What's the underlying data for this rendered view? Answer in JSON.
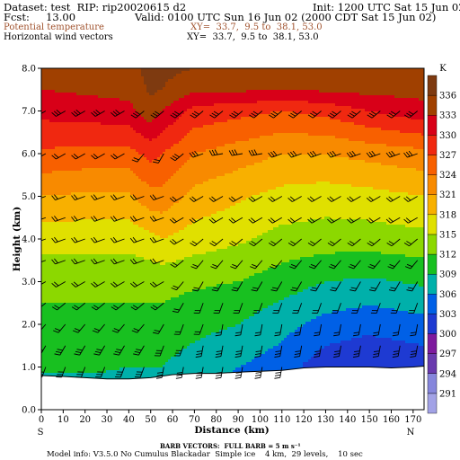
{
  "header": {
    "dataset_line": "Dataset: test  RIP: rip20020615 d2",
    "init_line": "Init: 1200 UTC Sat 15 Jun 02",
    "fcst_line": "Fcst:     13.00",
    "valid_line": "Valid: 0100 UTC Sun 16 Jun 02 (2000 CDT Sat 15 Jun 02)",
    "field1_label": "Potential temperature",
    "field1_xy": "XY=  33.7,  9.5 to  38.1, 53.0",
    "field2_label": "Horizontal wind vectors",
    "field2_xy": "XY=  33.7,  9.5 to  38.1, 53.0"
  },
  "footer": {
    "barb_line": "BARB VECTORS:  FULL BARB = 5 m s⁻¹",
    "model_line": "Model info: V3.5.0 No Cumulus Blackadar  Simple ice    4 km,  29 levels,    10 sec"
  },
  "colors": {
    "background": "#ffffff",
    "terrain": "#ffffff"
  },
  "chart_data": {
    "type": "heatmap",
    "title": "",
    "xlabel": "Distance  (km)",
    "ylabel": "Height (km)",
    "xlim": [
      0,
      175
    ],
    "ylim": [
      0,
      8
    ],
    "x_ticks": [
      0,
      10,
      20,
      30,
      40,
      50,
      60,
      70,
      80,
      90,
      100,
      110,
      120,
      130,
      140,
      150,
      160,
      170
    ],
    "y_ticks": [
      "0.0",
      "1.0",
      "2.0",
      "3.0",
      "4.0",
      "5.0",
      "6.0",
      "7.0",
      "8.0"
    ],
    "x_end_labels": {
      "left": "S",
      "right": "N"
    },
    "colorbar": {
      "unit": "K",
      "levels": [
        291,
        294,
        297,
        300,
        303,
        306,
        309,
        312,
        315,
        318,
        321,
        324,
        327,
        330,
        333,
        336
      ],
      "colors": [
        "#a2a2e6",
        "#8686dc",
        "#6a3aae",
        "#7e1a9e",
        "#1e3ad2",
        "#0060e6",
        "#00b0aa",
        "#18c020",
        "#8cd800",
        "#e0e000",
        "#f8b000",
        "#f88a00",
        "#f86000",
        "#f02810",
        "#d80018",
        "#a04000",
        "#7e3a10"
      ]
    },
    "terrain_height_km": {
      "x": [
        0,
        10,
        20,
        30,
        40,
        50,
        60,
        70,
        80,
        90,
        100,
        110,
        120,
        130,
        140,
        150,
        160,
        170,
        175
      ],
      "z": [
        0.8,
        0.78,
        0.75,
        0.72,
        0.72,
        0.75,
        0.82,
        0.85,
        0.85,
        0.88,
        0.9,
        0.92,
        0.98,
        1.0,
        1.0,
        1.0,
        0.98,
        1.0,
        1.02
      ]
    },
    "theta_profiles_K": {
      "z_km": [
        0.5,
        1,
        2,
        3,
        4,
        5,
        6,
        7,
        7.5,
        8
      ],
      "columns": [
        {
          "x": 0,
          "theta": [
            308,
            309.5,
            311,
            313,
            316,
            321,
            326.5,
            331,
            333,
            334
          ]
        },
        {
          "x": 20,
          "theta": [
            308,
            309.5,
            311,
            313,
            316,
            320.5,
            326,
            331.5,
            333.5,
            334
          ]
        },
        {
          "x": 40,
          "theta": [
            308,
            309,
            311,
            313,
            316,
            320.5,
            326,
            332,
            334,
            335
          ]
        },
        {
          "x": 50,
          "theta": [
            307,
            309,
            311,
            313,
            317,
            323,
            328,
            335,
            336.5,
            337
          ]
        },
        {
          "x": 55,
          "theta": [
            307,
            309,
            311,
            313,
            318,
            323,
            327,
            333,
            336,
            337
          ]
        },
        {
          "x": 70,
          "theta": [
            306,
            307.5,
            310,
            312.5,
            316.5,
            320,
            324,
            329,
            333.5,
            336
          ]
        },
        {
          "x": 90,
          "theta": [
            305,
            306,
            309,
            312,
            315.5,
            318.5,
            322.5,
            328,
            333.5,
            336
          ]
        },
        {
          "x": 110,
          "theta": [
            303,
            304.5,
            307,
            310.5,
            314,
            317,
            321,
            327,
            333,
            336
          ]
        },
        {
          "x": 130,
          "theta": [
            299,
            301,
            305,
            309,
            313.5,
            316.5,
            321,
            328,
            333.5,
            336
          ]
        },
        {
          "x": 150,
          "theta": [
            299,
            300,
            304,
            308.5,
            313.5,
            317,
            322,
            330,
            334,
            335
          ]
        },
        {
          "x": 175,
          "theta": [
            300,
            301,
            305,
            309.5,
            314,
            318,
            323,
            332,
            334,
            335
          ]
        }
      ]
    },
    "wind_barbs": {
      "x_km": [
        2,
        11,
        20,
        29,
        38,
        47,
        56,
        65,
        74,
        83,
        92,
        101,
        110,
        119,
        128,
        137,
        146,
        155,
        164,
        172
      ],
      "z_km": [
        1.0,
        1.5,
        2.0,
        2.5,
        3.0,
        3.5,
        4.0,
        4.5,
        5.0,
        6.0,
        7.0
      ],
      "rows": [
        {
          "z": 7.0,
          "dir": [
            240,
            240,
            240,
            240,
            240,
            230,
            230,
            230,
            230,
            230,
            230,
            230,
            230,
            230,
            230,
            230,
            230,
            230,
            230,
            230
          ],
          "spd": [
            15,
            15,
            15,
            15,
            15,
            15,
            15,
            15,
            15,
            15,
            15,
            15,
            15,
            15,
            15,
            15,
            15,
            15,
            15,
            15
          ]
        },
        {
          "z": 6.0,
          "dir": [
            240,
            240,
            240,
            240,
            240,
            220,
            210,
            230,
            250,
            260,
            260,
            260,
            250,
            250,
            250,
            250,
            250,
            250,
            250,
            250
          ],
          "spd": [
            10,
            10,
            10,
            10,
            10,
            10,
            10,
            15,
            15,
            15,
            15,
            15,
            15,
            15,
            15,
            15,
            15,
            15,
            15,
            15
          ]
        },
        {
          "z": 5.0,
          "dir": [
            250,
            250,
            250,
            250,
            250,
            250,
            250,
            240,
            240,
            240,
            240,
            240,
            240,
            240,
            240,
            240,
            240,
            240,
            240,
            240
          ],
          "spd": [
            10,
            10,
            10,
            10,
            10,
            10,
            10,
            10,
            10,
            10,
            10,
            10,
            10,
            10,
            10,
            10,
            10,
            10,
            10,
            10
          ]
        },
        {
          "z": 4.5,
          "dir": [
            250,
            250,
            250,
            250,
            250,
            250,
            250,
            240,
            240,
            240,
            240,
            240,
            240,
            240,
            240,
            240,
            240,
            240,
            240,
            240
          ],
          "spd": [
            10,
            10,
            10,
            10,
            10,
            10,
            10,
            10,
            10,
            10,
            10,
            10,
            10,
            10,
            10,
            10,
            10,
            10,
            10,
            10
          ]
        },
        {
          "z": 4.0,
          "dir": [
            250,
            250,
            250,
            250,
            250,
            250,
            250,
            240,
            230,
            230,
            230,
            230,
            230,
            230,
            230,
            230,
            230,
            230,
            230,
            230
          ],
          "spd": [
            10,
            10,
            10,
            10,
            10,
            10,
            10,
            10,
            10,
            10,
            10,
            10,
            10,
            10,
            10,
            10,
            10,
            10,
            10,
            10
          ]
        },
        {
          "z": 3.5,
          "dir": [
            250,
            250,
            250,
            250,
            250,
            250,
            250,
            230,
            220,
            220,
            220,
            220,
            220,
            220,
            220,
            220,
            220,
            220,
            220,
            220
          ],
          "spd": [
            10,
            10,
            10,
            10,
            10,
            10,
            10,
            10,
            10,
            10,
            10,
            10,
            10,
            10,
            10,
            10,
            10,
            10,
            10,
            10
          ]
        },
        {
          "z": 3.0,
          "dir": [
            240,
            240,
            240,
            240,
            240,
            240,
            240,
            220,
            210,
            210,
            210,
            210,
            210,
            210,
            210,
            210,
            210,
            210,
            210,
            210
          ],
          "spd": [
            10,
            10,
            10,
            10,
            10,
            10,
            10,
            10,
            10,
            10,
            10,
            10,
            10,
            10,
            10,
            10,
            10,
            10,
            10,
            10
          ]
        },
        {
          "z": 2.5,
          "dir": [
            230,
            230,
            230,
            230,
            230,
            230,
            230,
            210,
            200,
            200,
            200,
            200,
            200,
            200,
            200,
            200,
            200,
            200,
            200,
            200
          ],
          "spd": [
            10,
            10,
            10,
            10,
            10,
            10,
            10,
            10,
            10,
            10,
            10,
            10,
            10,
            10,
            10,
            10,
            10,
            10,
            10,
            10
          ]
        },
        {
          "z": 2.0,
          "dir": [
            220,
            220,
            220,
            220,
            220,
            220,
            210,
            200,
            200,
            190,
            190,
            190,
            190,
            190,
            190,
            190,
            190,
            190,
            190,
            190
          ],
          "spd": [
            10,
            10,
            10,
            10,
            10,
            10,
            10,
            10,
            10,
            10,
            10,
            10,
            10,
            10,
            10,
            10,
            10,
            10,
            10,
            10
          ]
        },
        {
          "z": 1.5,
          "dir": [
            210,
            210,
            210,
            210,
            210,
            210,
            200,
            200,
            190,
            190,
            190,
            190,
            190,
            190,
            190,
            190,
            190,
            190,
            190,
            190
          ],
          "spd": [
            15,
            15,
            15,
            15,
            15,
            15,
            15,
            15,
            15,
            15,
            15,
            15,
            15,
            15,
            15,
            15,
            15,
            15,
            15,
            15
          ]
        },
        {
          "z": 1.0,
          "dir": [
            200,
            200,
            200,
            200,
            200,
            200,
            190,
            190,
            190,
            190,
            190,
            190,
            190,
            190,
            190,
            190,
            190,
            190,
            190,
            190
          ],
          "spd": [
            15,
            15,
            15,
            15,
            15,
            15,
            15,
            15,
            15,
            15,
            15,
            15,
            15,
            15,
            15,
            15,
            15,
            15,
            15,
            15
          ]
        }
      ]
    }
  }
}
